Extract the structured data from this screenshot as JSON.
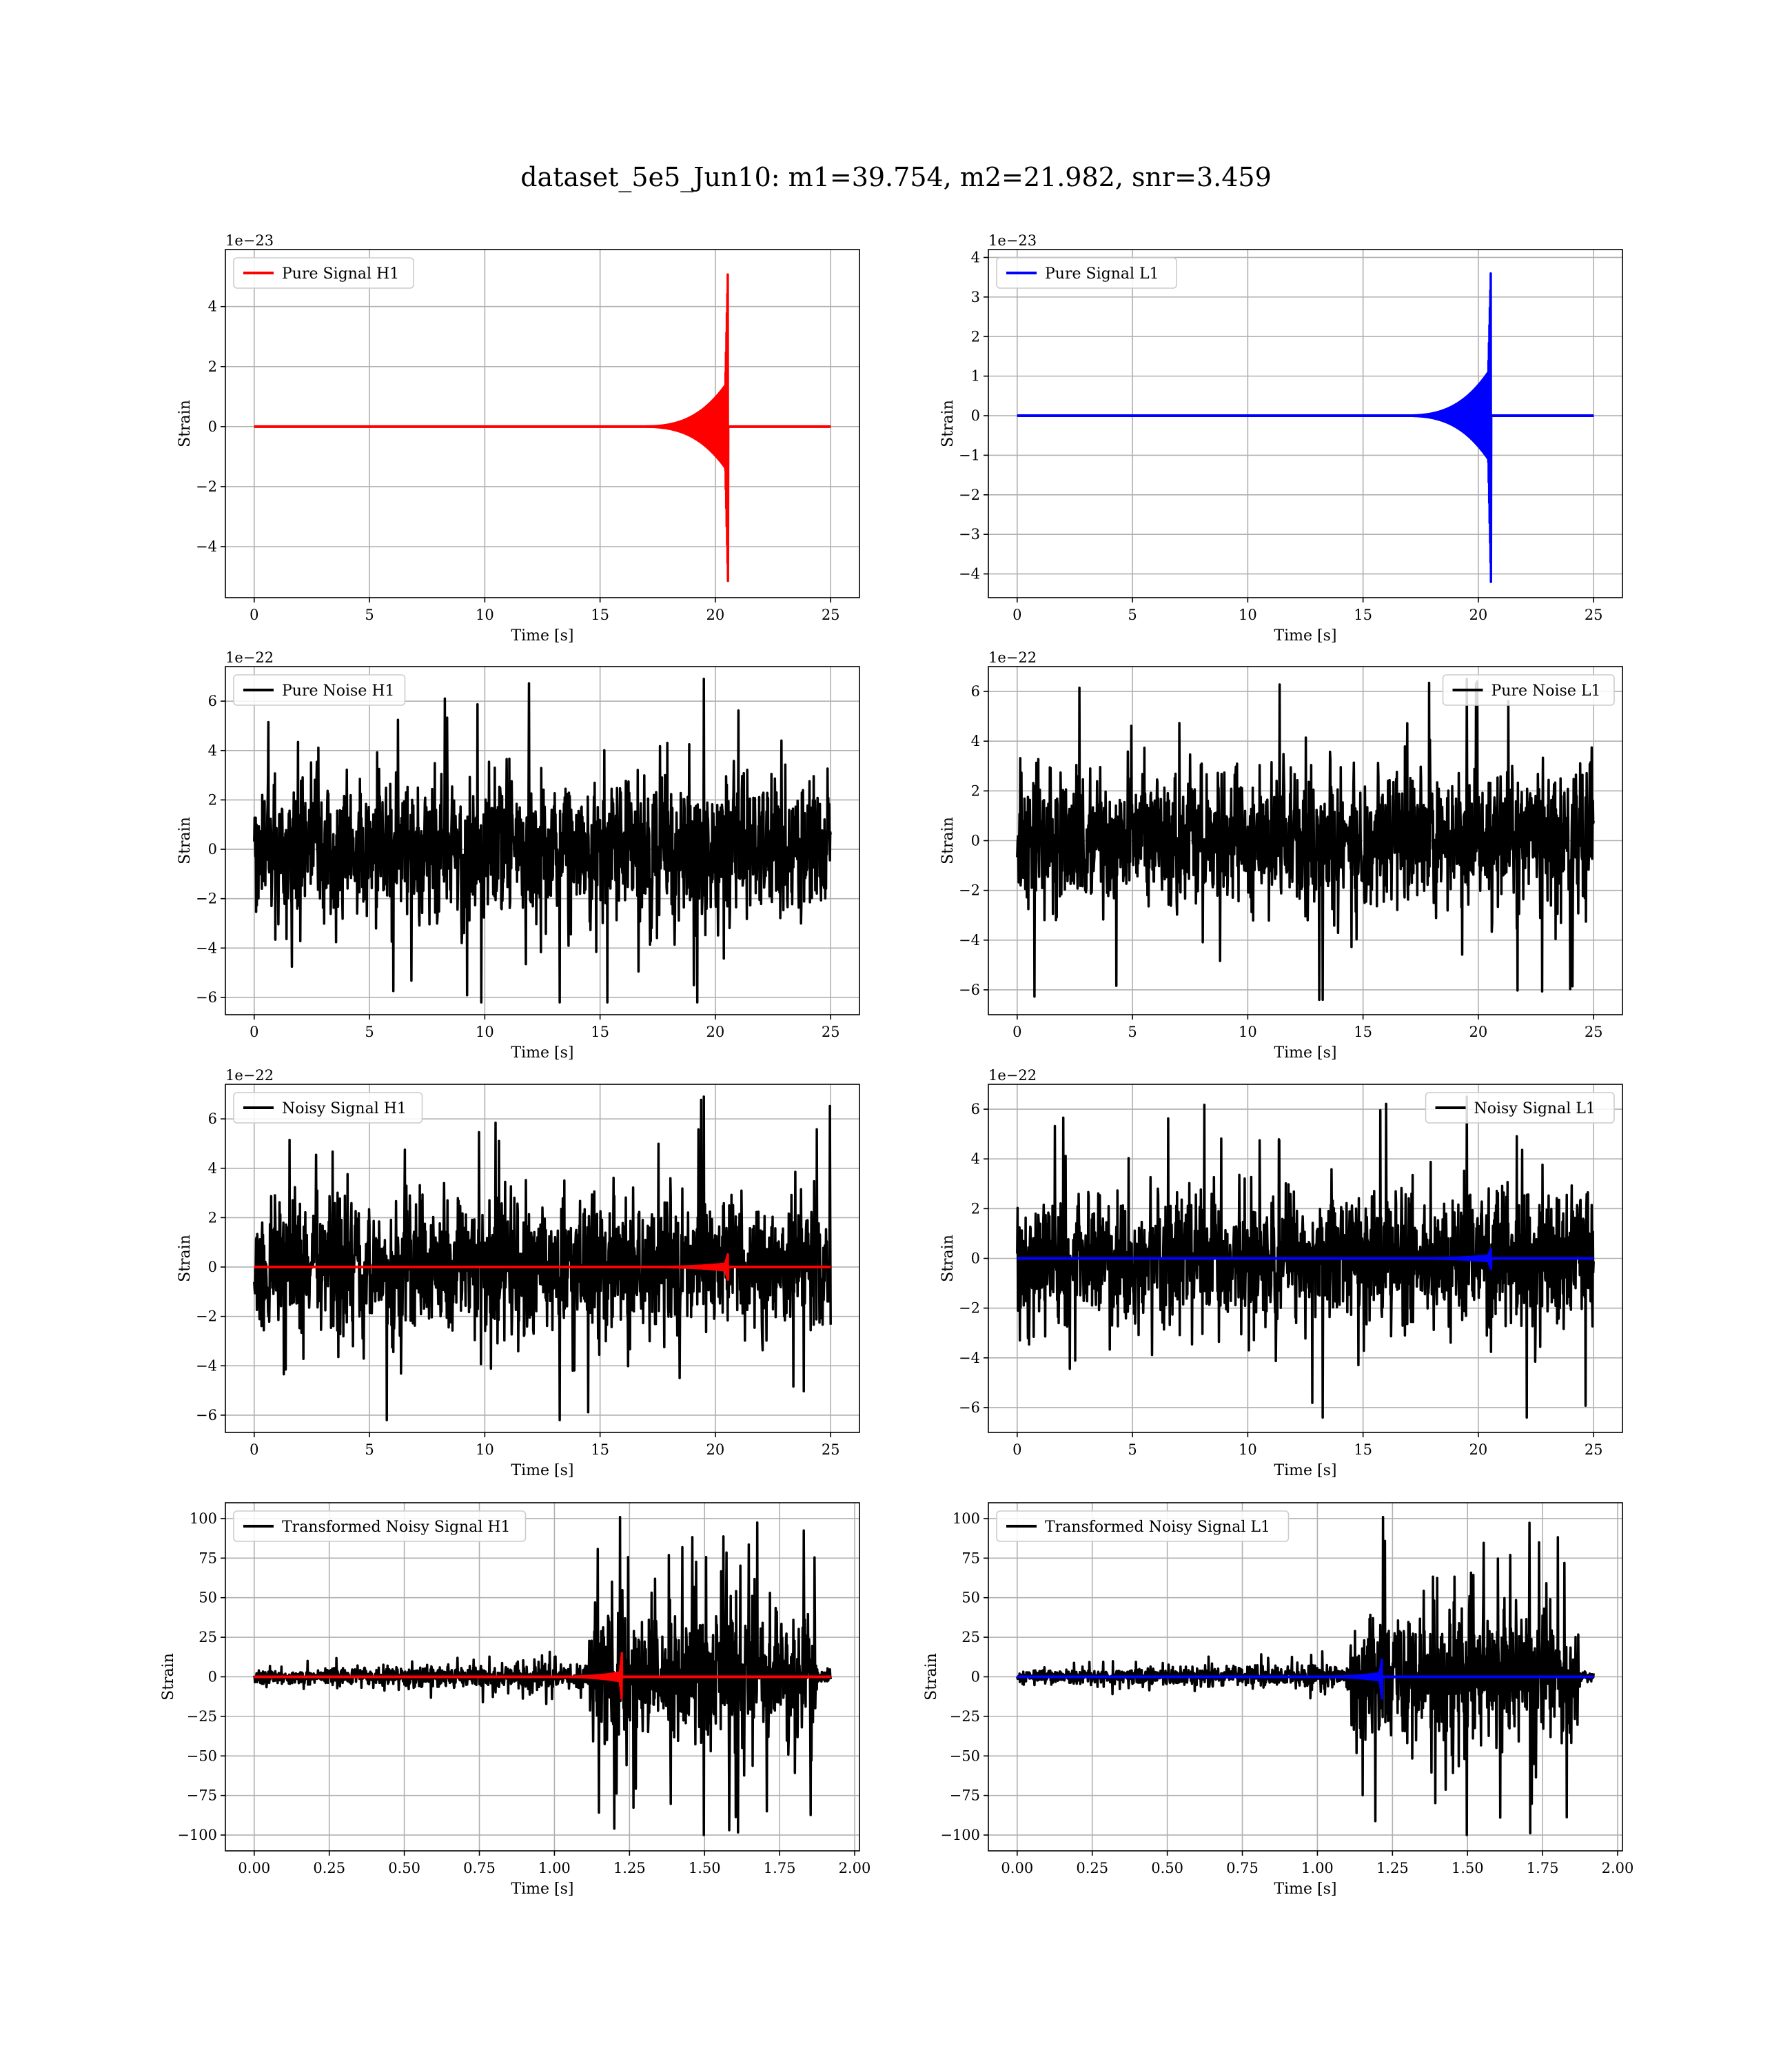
{
  "suptitle": "dataset_5e5_Jun10: m1=39.754, m2=21.982, snr=3.459",
  "colors": {
    "h1": "#ff0000",
    "l1": "#0000ff",
    "noise": "#000000",
    "grid": "#b0b0b0"
  },
  "chart_data": [
    {
      "type": "line",
      "name": "pure-signal-h1",
      "xlabel": "Time [s]",
      "ylabel": "Strain",
      "offset_text": "1e−23",
      "xlim": [
        -1.25,
        26.25
      ],
      "ylim": [
        -5.7,
        5.9
      ],
      "xticks": [
        0,
        5,
        10,
        15,
        20,
        25
      ],
      "xtick_labels": [
        "0",
        "5",
        "10",
        "15",
        "20",
        "25"
      ],
      "yticks": [
        -4,
        -2,
        0,
        2,
        4
      ],
      "ytick_labels": [
        "−4",
        "−2",
        "0",
        "2",
        "4"
      ],
      "legend_loc": "upper left",
      "grid": true,
      "series": [
        {
          "name": "Pure Signal H1",
          "color": "#ff0000",
          "kind": "chirp",
          "t_start": 0,
          "t_end": 25,
          "t_merge": 20.55,
          "peak_pos": 5.45,
          "peak_neg": -5.2,
          "inspiral_amp": 1.5
        }
      ]
    },
    {
      "type": "line",
      "name": "pure-signal-l1",
      "xlabel": "Time [s]",
      "ylabel": "Strain",
      "offset_text": "1e−23",
      "xlim": [
        -1.25,
        26.25
      ],
      "ylim": [
        -4.6,
        4.2
      ],
      "xticks": [
        0,
        5,
        10,
        15,
        20,
        25
      ],
      "xtick_labels": [
        "0",
        "5",
        "10",
        "15",
        "20",
        "25"
      ],
      "yticks": [
        -4,
        -3,
        -2,
        -1,
        0,
        1,
        2,
        3,
        4
      ],
      "ytick_labels": [
        "−4",
        "−3",
        "−2",
        "−1",
        "0",
        "1",
        "2",
        "3",
        "4"
      ],
      "legend_loc": "upper left",
      "grid": true,
      "series": [
        {
          "name": "Pure Signal L1",
          "color": "#0000ff",
          "kind": "chirp",
          "t_start": 0,
          "t_end": 25,
          "t_merge": 20.55,
          "peak_pos": 3.85,
          "peak_neg": -4.25,
          "inspiral_amp": 1.2
        }
      ]
    },
    {
      "type": "line",
      "name": "pure-noise-h1",
      "xlabel": "Time [s]",
      "ylabel": "Strain",
      "offset_text": "1e−22",
      "xlim": [
        -1.25,
        26.25
      ],
      "ylim": [
        -6.7,
        7.4
      ],
      "xticks": [
        0,
        5,
        10,
        15,
        20,
        25
      ],
      "xtick_labels": [
        "0",
        "5",
        "10",
        "15",
        "20",
        "25"
      ],
      "yticks": [
        -6,
        -4,
        -2,
        0,
        2,
        4,
        6
      ],
      "ytick_labels": [
        "−6",
        "−4",
        "−2",
        "0",
        "2",
        "4",
        "6"
      ],
      "legend_loc": "upper left",
      "grid": true,
      "series": [
        {
          "name": "Pure Noise H1",
          "color": "#000000",
          "kind": "noise",
          "t_start": 0,
          "t_end": 25,
          "band": 3.6,
          "max": 6.9,
          "min": -6.2
        }
      ]
    },
    {
      "type": "line",
      "name": "pure-noise-l1",
      "xlabel": "Time [s]",
      "ylabel": "Strain",
      "offset_text": "1e−22",
      "xlim": [
        -1.25,
        26.25
      ],
      "ylim": [
        -7.0,
        7.0
      ],
      "xticks": [
        0,
        5,
        10,
        15,
        20,
        25
      ],
      "xtick_labels": [
        "0",
        "5",
        "10",
        "15",
        "20",
        "25"
      ],
      "yticks": [
        -6,
        -4,
        -2,
        0,
        2,
        4,
        6
      ],
      "ytick_labels": [
        "−6",
        "−4",
        "−2",
        "0",
        "2",
        "4",
        "6"
      ],
      "legend_loc": "upper right",
      "grid": true,
      "series": [
        {
          "name": "Pure Noise L1",
          "color": "#000000",
          "kind": "noise",
          "t_start": 0,
          "t_end": 25,
          "band": 3.5,
          "max": 6.5,
          "min": -6.4
        }
      ]
    },
    {
      "type": "line",
      "name": "noisy-signal-h1",
      "xlabel": "Time [s]",
      "ylabel": "Strain",
      "offset_text": "1e−22",
      "xlim": [
        -1.25,
        26.25
      ],
      "ylim": [
        -6.7,
        7.4
      ],
      "xticks": [
        0,
        5,
        10,
        15,
        20,
        25
      ],
      "xtick_labels": [
        "0",
        "5",
        "10",
        "15",
        "20",
        "25"
      ],
      "yticks": [
        -6,
        -4,
        -2,
        0,
        2,
        4,
        6
      ],
      "ytick_labels": [
        "−6",
        "−4",
        "−2",
        "0",
        "2",
        "4",
        "6"
      ],
      "legend_loc": "upper left",
      "grid": true,
      "series": [
        {
          "name": "Noisy Signal H1",
          "color": "#000000",
          "kind": "noise",
          "t_start": 0,
          "t_end": 25,
          "band": 3.6,
          "max": 6.9,
          "min": -6.2
        },
        {
          "name": "",
          "color": "#ff0000",
          "kind": "chirp",
          "t_start": 0,
          "t_end": 25,
          "t_merge": 20.55,
          "peak_pos": 0.55,
          "peak_neg": -0.52,
          "inspiral_amp": 0.15
        }
      ]
    },
    {
      "type": "line",
      "name": "noisy-signal-l1",
      "xlabel": "Time [s]",
      "ylabel": "Strain",
      "offset_text": "1e−22",
      "xlim": [
        -1.25,
        26.25
      ],
      "ylim": [
        -7.0,
        7.0
      ],
      "xticks": [
        0,
        5,
        10,
        15,
        20,
        25
      ],
      "xtick_labels": [
        "0",
        "5",
        "10",
        "15",
        "20",
        "25"
      ],
      "yticks": [
        -6,
        -4,
        -2,
        0,
        2,
        4,
        6
      ],
      "ytick_labels": [
        "−6",
        "−4",
        "−2",
        "0",
        "2",
        "4",
        "6"
      ],
      "legend_loc": "upper right",
      "grid": true,
      "series": [
        {
          "name": "Noisy Signal L1",
          "color": "#000000",
          "kind": "noise",
          "t_start": 0,
          "t_end": 25,
          "band": 3.5,
          "max": 6.5,
          "min": -6.4
        },
        {
          "name": "",
          "color": "#0000ff",
          "kind": "chirp",
          "t_start": 0,
          "t_end": 25,
          "t_merge": 20.55,
          "peak_pos": 0.39,
          "peak_neg": -0.43,
          "inspiral_amp": 0.12
        }
      ]
    },
    {
      "type": "line",
      "name": "transformed-noisy-signal-h1",
      "xlabel": "Time [s]",
      "ylabel": "Strain",
      "offset_text": "",
      "xlim": [
        -0.096,
        2.016
      ],
      "ylim": [
        -110,
        110
      ],
      "xticks": [
        0,
        0.25,
        0.5,
        0.75,
        1.0,
        1.25,
        1.5,
        1.75,
        2.0
      ],
      "xtick_labels": [
        "0.00",
        "0.25",
        "0.50",
        "0.75",
        "1.00",
        "1.25",
        "1.50",
        "1.75",
        "2.00"
      ],
      "yticks": [
        -100,
        -75,
        -50,
        -25,
        0,
        25,
        50,
        75,
        100
      ],
      "ytick_labels": [
        "−100",
        "−75",
        "−50",
        "−25",
        "0",
        "25",
        "50",
        "75",
        "100"
      ],
      "legend_loc": "upper left",
      "grid": true,
      "series": [
        {
          "name": "Transformed Noisy Signal H1",
          "color": "#000000",
          "kind": "transformed",
          "t_start": 0,
          "t_end": 1.92,
          "t_step": 1.115,
          "t_stop": 1.875,
          "low_band": 9,
          "high_band": 48,
          "max": 101,
          "min": -100
        },
        {
          "name": "",
          "color": "#ff0000",
          "kind": "chirp",
          "t_start": 0,
          "t_end": 1.92,
          "t_merge": 1.225,
          "peak_pos": 16,
          "peak_neg": -16,
          "inspiral_amp": 3,
          "chirp_width": 0.25
        }
      ]
    },
    {
      "type": "line",
      "name": "transformed-noisy-signal-l1",
      "xlabel": "Time [s]",
      "ylabel": "Strain",
      "offset_text": "",
      "xlim": [
        -0.096,
        2.016
      ],
      "ylim": [
        -110,
        110
      ],
      "xticks": [
        0,
        0.25,
        0.5,
        0.75,
        1.0,
        1.25,
        1.5,
        1.75,
        2.0
      ],
      "xtick_labels": [
        "0.00",
        "0.25",
        "0.50",
        "0.75",
        "1.00",
        "1.25",
        "1.50",
        "1.75",
        "2.00"
      ],
      "yticks": [
        -100,
        -75,
        -50,
        -25,
        0,
        25,
        50,
        75,
        100
      ],
      "ytick_labels": [
        "−100",
        "−75",
        "−50",
        "−25",
        "0",
        "25",
        "50",
        "75",
        "100"
      ],
      "legend_loc": "upper left",
      "grid": true,
      "series": [
        {
          "name": "Transformed Noisy Signal L1",
          "color": "#000000",
          "kind": "transformed",
          "t_start": 0,
          "t_end": 1.92,
          "t_step": 1.11,
          "t_stop": 1.87,
          "low_band": 8,
          "high_band": 48,
          "max": 101,
          "min": -100
        },
        {
          "name": "",
          "color": "#0000ff",
          "kind": "chirp",
          "t_start": 0,
          "t_end": 1.92,
          "t_merge": 1.215,
          "peak_pos": 12,
          "peak_neg": -14,
          "inspiral_amp": 2.5,
          "chirp_width": 0.25
        }
      ]
    }
  ]
}
